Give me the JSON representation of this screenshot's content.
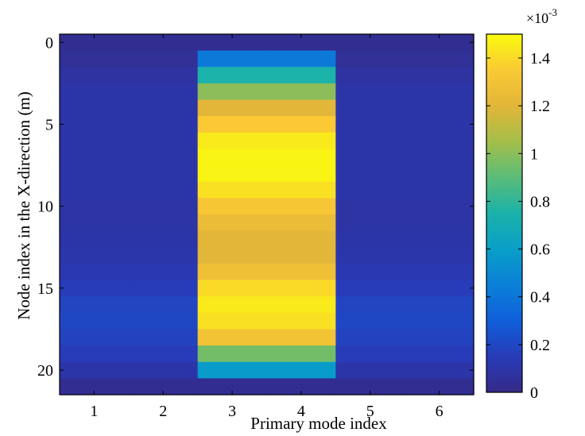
{
  "chart_data": {
    "type": "heatmap",
    "title": "",
    "xlabel": "Primary mode index",
    "ylabel": "Node index in the X-direction (m)",
    "x_categories": [
      1,
      2,
      3,
      4,
      5,
      6
    ],
    "y_categories": [
      0,
      1,
      2,
      3,
      4,
      5,
      6,
      7,
      8,
      9,
      10,
      11,
      12,
      13,
      14,
      15,
      16,
      17,
      18,
      19,
      20,
      21
    ],
    "xlim": [
      0.5,
      6.5
    ],
    "ylim": [
      -0.5,
      21.5
    ],
    "y_reversed": true,
    "x_ticks": [
      "1",
      "2",
      "3",
      "4",
      "5",
      "6"
    ],
    "y_ticks": [
      "0",
      "5",
      "10",
      "15",
      "20"
    ],
    "colormap": "parula",
    "clim": [
      0,
      0.0015
    ],
    "colorbar": {
      "exponent_label": "×10",
      "exponent_power": "-3",
      "ticks": [
        "0",
        "0.2",
        "0.4",
        "0.6",
        "0.8",
        "1",
        "1.2",
        "1.4"
      ],
      "tick_values": [
        0,
        0.0002,
        0.0004,
        0.0006,
        0.0008,
        0.001,
        0.0012,
        0.0014
      ],
      "position": "right"
    },
    "values": [
      [
        3e-05,
        3e-05,
        3e-05,
        3e-05,
        3e-05,
        3e-05
      ],
      [
        5e-05,
        5e-05,
        0.00042,
        0.00042,
        5e-05,
        5e-05
      ],
      [
        8e-05,
        8e-05,
        0.00075,
        0.00075,
        8e-05,
        8e-05
      ],
      [
        0.0001,
        0.0001,
        0.001,
        0.001,
        0.0001,
        0.0001
      ],
      [
        0.0001,
        0.0001,
        0.0012,
        0.0012,
        0.0001,
        0.0001
      ],
      [
        0.0001,
        0.0001,
        0.00135,
        0.00135,
        0.0001,
        0.0001
      ],
      [
        0.0001,
        0.0001,
        0.00145,
        0.00145,
        0.0001,
        0.0001
      ],
      [
        0.0001,
        0.0001,
        0.00148,
        0.00148,
        0.0001,
        0.0001
      ],
      [
        0.0001,
        0.0001,
        0.00148,
        0.00148,
        0.0001,
        0.0001
      ],
      [
        0.0001,
        0.0001,
        0.00142,
        0.00142,
        0.0001,
        0.0001
      ],
      [
        9e-05,
        9e-05,
        0.00133,
        0.00133,
        9e-05,
        9e-05
      ],
      [
        9e-05,
        9e-05,
        0.00125,
        0.00125,
        9e-05,
        9e-05
      ],
      [
        0.0001,
        0.0001,
        0.0012,
        0.0012,
        0.0001,
        0.0001
      ],
      [
        0.00011,
        0.00011,
        0.0012,
        0.0012,
        0.00011,
        0.00011
      ],
      [
        0.00013,
        0.00013,
        0.00128,
        0.00128,
        0.00013,
        0.00013
      ],
      [
        0.00015,
        0.00015,
        0.0014,
        0.0014,
        0.00015,
        0.00015
      ],
      [
        0.00019,
        0.00019,
        0.00145,
        0.00145,
        0.00019,
        0.00019
      ],
      [
        0.0002,
        0.0002,
        0.00142,
        0.00142,
        0.0002,
        0.0002
      ],
      [
        0.00018,
        0.00018,
        0.0013,
        0.0013,
        0.00018,
        0.00018
      ],
      [
        0.00015,
        0.00015,
        0.00095,
        0.00095,
        0.00015,
        0.00015
      ],
      [
        0.0001,
        0.0001,
        0.00058,
        0.00058,
        0.0001,
        0.0001
      ],
      [
        3e-05,
        3e-05,
        3e-05,
        3e-05,
        3e-05,
        3e-05
      ]
    ]
  }
}
